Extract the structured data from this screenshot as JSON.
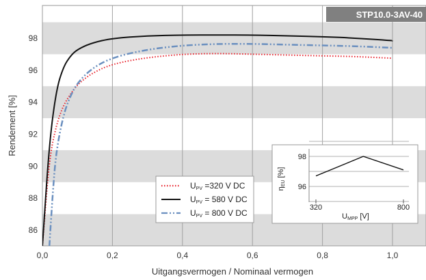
{
  "chart_data": [
    {
      "type": "line",
      "title": "",
      "model_label": "STP10.0-3AV-40",
      "xlabel": "Uitgangsvermogen / Nominaal vermogen",
      "ylabel": "Rendement [%]",
      "xlim": [
        0,
        1.1
      ],
      "ylim": [
        85,
        100
      ],
      "x_ticks": [
        "0,0",
        "0,2",
        "0,4",
        "0,6",
        "0,8",
        "1,0"
      ],
      "x_tick_values": [
        0,
        0.2,
        0.4,
        0.6,
        0.8,
        1.0
      ],
      "y_ticks": [
        "86",
        "88",
        "90",
        "92",
        "94",
        "96",
        "98"
      ],
      "y_tick_values": [
        86,
        88,
        90,
        92,
        94,
        96,
        98
      ],
      "grid": "vertical lines, alternating horizontal bands",
      "legend_position": "bottom-center",
      "series": [
        {
          "name_main": "U",
          "name_sub": "PV",
          "name_rest": " =320 V DC",
          "color": "#e8212b",
          "style": "dotted",
          "x": [
            0.0,
            0.02,
            0.04,
            0.06,
            0.08,
            0.1,
            0.14,
            0.2,
            0.3,
            0.4,
            0.5,
            0.6,
            0.7,
            0.8,
            0.9,
            1.0
          ],
          "y": [
            85.0,
            90.5,
            92.6,
            93.8,
            94.5,
            95.1,
            95.8,
            96.4,
            96.8,
            97.0,
            97.05,
            97.0,
            96.95,
            96.9,
            96.85,
            96.75
          ]
        },
        {
          "name_main": "U",
          "name_sub": "PV",
          "name_rest": " = 580 V DC",
          "color": "#111111",
          "style": "solid",
          "x": [
            0.0,
            0.02,
            0.04,
            0.06,
            0.08,
            0.1,
            0.14,
            0.2,
            0.3,
            0.4,
            0.5,
            0.6,
            0.7,
            0.8,
            0.9,
            1.0
          ],
          "y": [
            85.0,
            91.5,
            94.8,
            96.2,
            96.9,
            97.3,
            97.7,
            98.0,
            98.15,
            98.2,
            98.2,
            98.2,
            98.15,
            98.1,
            98.0,
            97.85
          ]
        },
        {
          "name_main": "U",
          "name_sub": "PV",
          "name_rest": " = 800 V DC",
          "color": "#6a8fbf",
          "style": "dash-dot",
          "x": [
            0.02,
            0.03,
            0.04,
            0.06,
            0.08,
            0.1,
            0.14,
            0.2,
            0.3,
            0.4,
            0.5,
            0.6,
            0.7,
            0.8,
            0.9,
            1.0
          ],
          "y": [
            85.0,
            88.5,
            91.0,
            93.2,
            94.4,
            95.2,
            96.1,
            96.8,
            97.3,
            97.55,
            97.65,
            97.65,
            97.6,
            97.55,
            97.5,
            97.4
          ]
        }
      ]
    },
    {
      "type": "line",
      "title": "",
      "ylabel_main": "η",
      "ylabel_sub": "EU",
      "ylabel_rest": " [%]",
      "xlabel_main": "U",
      "xlabel_sub": "MPP",
      "xlabel_rest": " [V]",
      "xlim": [
        320,
        800
      ],
      "ylim": [
        95,
        99
      ],
      "x_ticks": [
        "320",
        "800"
      ],
      "x_tick_values": [
        320,
        800
      ],
      "y_ticks": [
        "96",
        "98"
      ],
      "y_tick_values": [
        96,
        98
      ],
      "series": [
        {
          "name": "",
          "color": "#111111",
          "x": [
            320,
            580,
            800
          ],
          "y": [
            96.7,
            98.0,
            97.1
          ]
        }
      ]
    }
  ]
}
